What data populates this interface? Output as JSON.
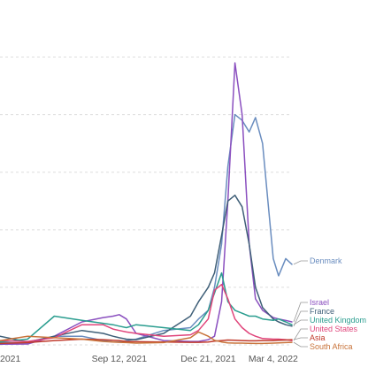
{
  "chart_data": {
    "type": "line",
    "title": "",
    "xlabel": "",
    "ylabel": "",
    "x": [
      "2021-05-01",
      "2021-06-01",
      "2021-07-01",
      "2021-08-01",
      "2021-08-25",
      "2021-09-05",
      "2021-09-12",
      "2021-09-20",
      "2021-10-01",
      "2021-11-01",
      "2021-12-01",
      "2021-12-10",
      "2021-12-21",
      "2021-12-28",
      "2022-01-05",
      "2022-01-12",
      "2022-01-20",
      "2022-01-28",
      "2022-02-05",
      "2022-02-12",
      "2022-02-20",
      "2022-03-04",
      "2022-03-10",
      "2022-03-18",
      "2022-03-25"
    ],
    "x_ticks": [
      "2021",
      "Sep 12, 2021",
      "Dec 21, 2021",
      "Mar 4, 2022"
    ],
    "ylim": [
      0,
      11000
    ],
    "yticks": [
      0,
      2000,
      4000,
      6000,
      8000,
      10000
    ],
    "grid": true,
    "y_tick_labels_visible": false,
    "legend_placement": "right, end of lines",
    "series": [
      {
        "name": "Denmark",
        "color": "#6a8dbf",
        "values": [
          80,
          70,
          300,
          300,
          150,
          100,
          100,
          150,
          200,
          500,
          600,
          900,
          1200,
          2000,
          3500,
          6200,
          8000,
          7800,
          7400,
          7900,
          7000,
          3000,
          2400,
          3000,
          2800
        ]
      },
      {
        "name": "Israel",
        "color": "#8a4fbf",
        "values": [
          20,
          30,
          300,
          800,
          950,
          1000,
          1050,
          900,
          400,
          150,
          120,
          120,
          180,
          300,
          1500,
          5000,
          9800,
          8000,
          3500,
          1600,
          1200,
          950,
          900,
          850,
          800
        ]
      },
      {
        "name": "France",
        "color": "#3f5f78",
        "values": [
          300,
          100,
          300,
          500,
          400,
          300,
          250,
          200,
          180,
          400,
          1000,
          1500,
          2000,
          2500,
          3800,
          5000,
          5200,
          4800,
          3500,
          2000,
          1300,
          900,
          800,
          700,
          650
        ]
      },
      {
        "name": "United Kingdom",
        "color": "#2a9d8f",
        "values": [
          100,
          200,
          1000,
          850,
          750,
          700,
          650,
          600,
          700,
          600,
          500,
          700,
          1200,
          1800,
          2500,
          1500,
          1200,
          1100,
          1000,
          1000,
          900,
          850,
          900,
          800,
          700
        ]
      },
      {
        "name": "United States",
        "color": "#e0457b",
        "values": [
          150,
          120,
          250,
          700,
          700,
          550,
          500,
          450,
          400,
          300,
          350,
          500,
          900,
          1900,
          2100,
          1600,
          900,
          600,
          400,
          300,
          220,
          200,
          200,
          180,
          150
        ]
      },
      {
        "name": "Asia",
        "color": "#c0392b",
        "values": [
          50,
          80,
          150,
          200,
          180,
          160,
          150,
          120,
          110,
          100,
          90,
          90,
          100,
          130,
          150,
          170,
          160,
          150,
          140,
          140,
          150,
          150,
          160,
          170,
          180
        ]
      },
      {
        "name": "South Africa",
        "color": "#c8733a",
        "values": [
          150,
          300,
          250,
          200,
          120,
          100,
          90,
          80,
          60,
          80,
          250,
          450,
          300,
          160,
          100,
          70,
          60,
          60,
          55,
          50,
          50,
          60,
          70,
          80,
          90
        ]
      }
    ]
  }
}
